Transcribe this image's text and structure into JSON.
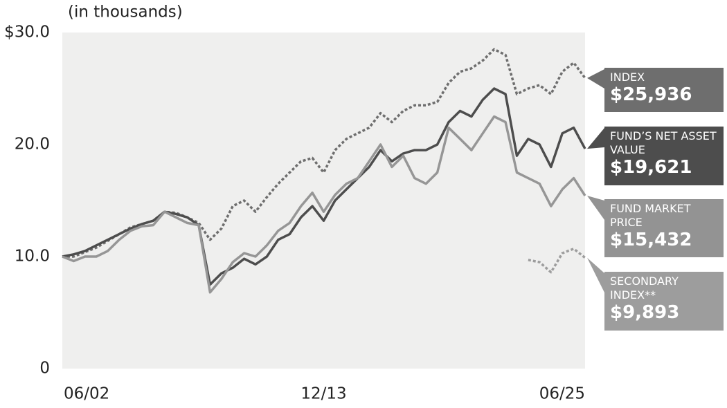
{
  "chart_data": {
    "type": "line",
    "ylabel": "(in thousands)",
    "categories": [
      "06/02",
      null,
      null,
      null,
      null,
      null,
      null,
      null,
      null,
      null,
      null,
      null,
      null,
      null,
      null,
      null,
      null,
      null,
      null,
      null,
      null,
      null,
      null,
      "12/13",
      null,
      null,
      null,
      null,
      null,
      null,
      null,
      null,
      null,
      null,
      null,
      null,
      null,
      null,
      null,
      null,
      null,
      null,
      null,
      null,
      null,
      null,
      "06/25"
    ],
    "ylim": [
      0,
      30
    ],
    "yticks": [
      0,
      {
        "value": 10,
        "label": "10.0"
      },
      {
        "value": 20,
        "label": "20.0"
      },
      {
        "value": 30,
        "label": "$30.0"
      }
    ],
    "grid": false,
    "series": [
      {
        "name": "INDEX",
        "color": "#6e6e6e",
        "dashed": true,
        "values": [
          10.0,
          10.0,
          10.4,
          10.8,
          11.4,
          12.0,
          12.6,
          12.9,
          13.2,
          14.0,
          13.9,
          13.5,
          13.0,
          11.5,
          12.5,
          14.5,
          15.0,
          14.0,
          15.3,
          16.5,
          17.5,
          18.5,
          18.8,
          17.5,
          19.5,
          20.5,
          21.0,
          21.5,
          22.8,
          22.0,
          23.0,
          23.5,
          23.5,
          23.8,
          25.5,
          26.5,
          26.8,
          27.5,
          28.5,
          28.0,
          24.5,
          25.0,
          25.3,
          24.5,
          26.5,
          27.3,
          25.936
        ],
        "value_labels": [
          null,
          null,
          null,
          null,
          null,
          null,
          null,
          null,
          null,
          null,
          null,
          null,
          null,
          null,
          null,
          null,
          null,
          null,
          null,
          null,
          null,
          null,
          null,
          null,
          null,
          null,
          null,
          null,
          null,
          null,
          null,
          null,
          null,
          null,
          null,
          null,
          null,
          null,
          null,
          null,
          null,
          null,
          null,
          null,
          null,
          null,
          "$25,936"
        ]
      },
      {
        "name": "FUND’S NET ASSET VALUE",
        "color": "#4d4d4d",
        "dashed": false,
        "values": [
          10.0,
          10.2,
          10.5,
          11.0,
          11.5,
          12.0,
          12.5,
          12.9,
          13.2,
          14.0,
          13.8,
          13.5,
          12.8,
          7.5,
          8.5,
          9.0,
          9.8,
          9.3,
          10.0,
          11.5,
          12.0,
          13.5,
          14.5,
          13.2,
          15.0,
          16.0,
          17.0,
          18.0,
          19.5,
          18.5,
          19.2,
          19.5,
          19.5,
          20.0,
          22.0,
          23.0,
          22.5,
          24.0,
          25.0,
          24.5,
          19.0,
          20.5,
          20.0,
          18.0,
          21.0,
          21.5,
          19.621
        ],
        "value_labels": [
          null,
          null,
          null,
          null,
          null,
          null,
          null,
          null,
          null,
          null,
          null,
          null,
          null,
          null,
          null,
          null,
          null,
          null,
          null,
          null,
          null,
          null,
          null,
          null,
          null,
          null,
          null,
          null,
          null,
          null,
          null,
          null,
          null,
          null,
          null,
          null,
          null,
          null,
          null,
          null,
          null,
          null,
          null,
          null,
          null,
          null,
          "$19,621"
        ]
      },
      {
        "name": "FUND MARKET PRICE",
        "color": "#969696",
        "dashed": false,
        "values": [
          10.0,
          9.6,
          10.0,
          10.0,
          10.5,
          11.5,
          12.3,
          12.7,
          12.8,
          14.0,
          13.5,
          13.0,
          12.8,
          6.8,
          8.0,
          9.5,
          10.3,
          10.0,
          11.0,
          12.3,
          13.0,
          14.5,
          15.7,
          14.0,
          15.5,
          16.5,
          17.0,
          18.5,
          20.0,
          18.0,
          19.0,
          17.0,
          16.5,
          17.5,
          21.5,
          20.5,
          19.5,
          21.0,
          22.5,
          22.0,
          17.5,
          17.0,
          16.5,
          14.5,
          16.0,
          17.0,
          15.432
        ],
        "value_labels": [
          null,
          null,
          null,
          null,
          null,
          null,
          null,
          null,
          null,
          null,
          null,
          null,
          null,
          null,
          null,
          null,
          null,
          null,
          null,
          null,
          null,
          null,
          null,
          null,
          null,
          null,
          null,
          null,
          null,
          null,
          null,
          null,
          null,
          null,
          null,
          null,
          null,
          null,
          null,
          null,
          null,
          null,
          null,
          null,
          null,
          null,
          "$15,432"
        ]
      },
      {
        "name": "SECONDARY INDEX**",
        "color": "#9d9d9d",
        "dashed": true,
        "values": [
          null,
          null,
          null,
          null,
          null,
          null,
          null,
          null,
          null,
          null,
          null,
          null,
          null,
          null,
          null,
          null,
          null,
          null,
          null,
          null,
          null,
          null,
          null,
          null,
          null,
          null,
          null,
          null,
          null,
          null,
          null,
          null,
          null,
          null,
          null,
          null,
          null,
          null,
          null,
          null,
          null,
          9.7,
          9.5,
          8.6,
          10.3,
          10.7,
          9.893
        ],
        "value_labels": [
          null,
          null,
          null,
          null,
          null,
          null,
          null,
          null,
          null,
          null,
          null,
          null,
          null,
          null,
          null,
          null,
          null,
          null,
          null,
          null,
          null,
          null,
          null,
          null,
          null,
          null,
          null,
          null,
          null,
          null,
          null,
          null,
          null,
          null,
          null,
          null,
          null,
          null,
          null,
          null,
          null,
          null,
          null,
          null,
          null,
          null,
          "$9,893"
        ]
      }
    ]
  }
}
